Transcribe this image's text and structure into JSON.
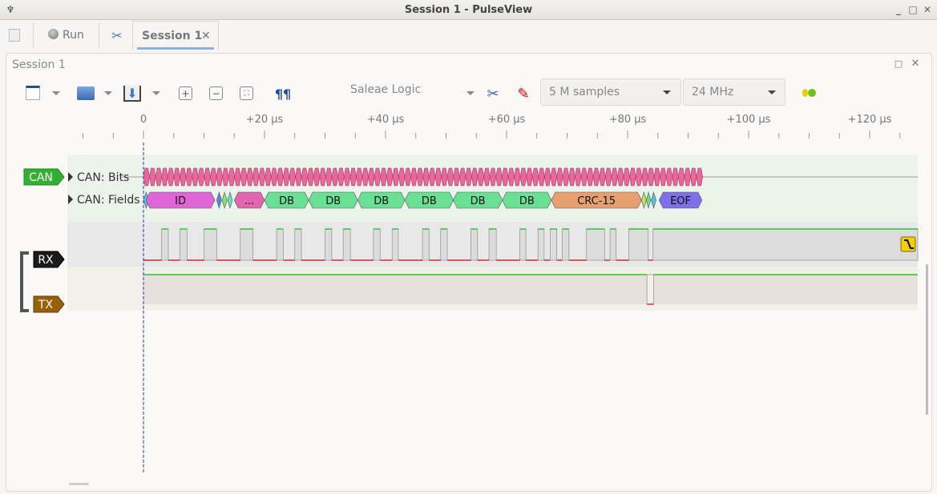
{
  "window": {
    "title": "Session 1 - PulseView"
  },
  "tabbar": {
    "run_label": "Run",
    "session_tab": "Session 1"
  },
  "panel": {
    "title": "Session 1"
  },
  "toolbar": {
    "device": "Saleae Logic",
    "samples": "5 M samples",
    "samplerate": "24 MHz"
  },
  "ruler": {
    "labels": [
      "0",
      "+20 µs",
      "+40 µs",
      "+60 µs",
      "+80 µs",
      "+100 µs",
      "+120 µs"
    ]
  },
  "colors": {
    "accent": "#8fb0e0",
    "high": "#00c000",
    "low": "#cc0000",
    "can_tag": "#33b033",
    "rx_tag": "#1a1a1a",
    "tx_tag": "#99600a",
    "cursor": "#3030c0"
  },
  "channels": {
    "decoder": {
      "tag": "CAN",
      "rows": [
        "CAN: Bits",
        "CAN: Fields"
      ]
    },
    "rx": {
      "tag": "RX",
      "high_pulses_us": [
        [
          3.0,
          4.1
        ],
        [
          6.0,
          7.2
        ],
        [
          10.0,
          12.1
        ],
        [
          16.0,
          18.1
        ],
        [
          22.0,
          23.1
        ],
        [
          25.0,
          26.1
        ],
        [
          30.0,
          31.1
        ],
        [
          33.0,
          34.2
        ],
        [
          38.0,
          39.1
        ],
        [
          41.1,
          42.1
        ],
        [
          46.1,
          47.2
        ],
        [
          49.1,
          50.2
        ],
        [
          54.1,
          55.2
        ],
        [
          57.1,
          58.3
        ],
        [
          62.2,
          63.2
        ],
        [
          65.2,
          66.2
        ],
        [
          67.2,
          68.3
        ],
        [
          69.2,
          70.3
        ],
        [
          73.2,
          76.2
        ],
        [
          77.1,
          78.1
        ],
        [
          80.2,
          83.4
        ],
        [
          84.2,
          128
        ]
      ],
      "trigger": "falling-edge"
    },
    "tx": {
      "tag": "TX",
      "low_pulses_us": [
        [
          83.2,
          84.3
        ]
      ],
      "end_us": 128
    }
  },
  "can_bits": {
    "start_us": 0,
    "end_us": 92.4,
    "count": 92,
    "color": "#e8689a"
  },
  "can_fields": [
    {
      "label": "",
      "start": 0,
      "end": 0.9,
      "color": "#5bc0e0"
    },
    {
      "label": "ID",
      "start": 0.4,
      "end": 11.8,
      "color": "#e066d8"
    },
    {
      "label": "",
      "start": 12.1,
      "end": 12.9,
      "color": "#5a88e0"
    },
    {
      "label": "",
      "start": 13.0,
      "end": 13.8,
      "color": "#8ee06a"
    },
    {
      "label": "",
      "start": 13.9,
      "end": 14.7,
      "color": "#66e0c8"
    },
    {
      "label": "...",
      "start": 15.0,
      "end": 20.0,
      "color": "#e066b0"
    },
    {
      "label": "DB",
      "start": 20.0,
      "end": 27.3,
      "color": "#6ae094"
    },
    {
      "label": "DB",
      "start": 27.3,
      "end": 35.4,
      "color": "#6ae094"
    },
    {
      "label": "DB",
      "start": 35.4,
      "end": 43.2,
      "color": "#6ae094"
    },
    {
      "label": "DB",
      "start": 43.2,
      "end": 51.2,
      "color": "#6ae094"
    },
    {
      "label": "DB",
      "start": 51.2,
      "end": 59.3,
      "color": "#6ae094"
    },
    {
      "label": "DB",
      "start": 59.3,
      "end": 67.4,
      "color": "#6ae094"
    },
    {
      "label": "CRC-15",
      "start": 67.4,
      "end": 82.3,
      "color": "#e8a070"
    },
    {
      "label": "",
      "start": 82.3,
      "end": 83.1,
      "color": "#c0e060"
    },
    {
      "label": "",
      "start": 83.1,
      "end": 83.8,
      "color": "#6ae094"
    },
    {
      "label": "",
      "start": 83.9,
      "end": 84.7,
      "color": "#5bc0e0"
    },
    {
      "label": "EOF",
      "start": 85.2,
      "end": 92.3,
      "color": "#8070e8"
    }
  ]
}
